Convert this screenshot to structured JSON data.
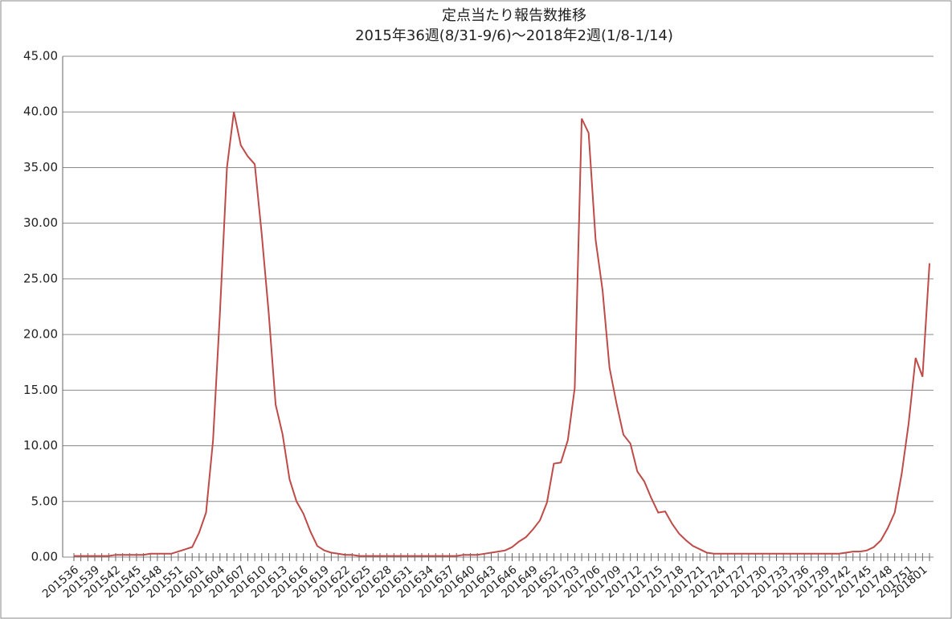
{
  "chart_data": {
    "type": "line",
    "title": "定点当たり報告数推移",
    "subtitle": "2015年36週(8/31-9/6)～2018年2週(1/8-1/14)",
    "categories": [
      "201536",
      null,
      null,
      "201539",
      null,
      null,
      "201542",
      null,
      null,
      "201545",
      null,
      null,
      "201548",
      null,
      null,
      "201551",
      null,
      null,
      "201601",
      null,
      null,
      "201604",
      null,
      null,
      "201607",
      null,
      null,
      "201610",
      null,
      null,
      "201613",
      null,
      null,
      "201616",
      null,
      null,
      "201619",
      null,
      null,
      "201622",
      null,
      null,
      "201625",
      null,
      null,
      "201628",
      null,
      null,
      "201631",
      null,
      null,
      "201634",
      null,
      null,
      "201637",
      null,
      null,
      "201640",
      null,
      null,
      "201643",
      null,
      null,
      "201646",
      null,
      null,
      "201649",
      null,
      null,
      "201652",
      null,
      null,
      "201703",
      null,
      null,
      "201706",
      null,
      null,
      "201709",
      null,
      null,
      "201712",
      null,
      null,
      "201715",
      null,
      null,
      "201718",
      null,
      null,
      "201721",
      null,
      null,
      "201724",
      null,
      null,
      "201727",
      null,
      null,
      "201730",
      null,
      null,
      "201733",
      null,
      null,
      "201736",
      null,
      null,
      "201739",
      null,
      null,
      "201742",
      null,
      null,
      "201745",
      null,
      null,
      "201748",
      null,
      null,
      "201751",
      null,
      "201801",
      null
    ],
    "series": [
      {
        "name": "定点当たり報告数",
        "color": "#be4b48",
        "values": [
          0.1,
          0.1,
          0.1,
          0.1,
          0.1,
          0.1,
          0.2,
          0.2,
          0.2,
          0.2,
          0.2,
          0.3,
          0.3,
          0.3,
          0.3,
          0.5,
          0.7,
          0.9,
          2.2,
          4.0,
          10.5,
          22,
          35,
          40,
          37,
          36,
          35.3,
          29,
          22,
          13.7,
          11,
          7,
          5,
          3.9,
          2.3,
          1.0,
          0.6,
          0.4,
          0.3,
          0.2,
          0.2,
          0.1,
          0.1,
          0.1,
          0.1,
          0.1,
          0.1,
          0.1,
          0.1,
          0.1,
          0.1,
          0.1,
          0.1,
          0.1,
          0.1,
          0.1,
          0.2,
          0.2,
          0.2,
          0.3,
          0.4,
          0.5,
          0.6,
          0.9,
          1.4,
          1.8,
          2.5,
          3.3,
          4.9,
          8.4,
          8.5,
          10.5,
          15.2,
          39.4,
          38.1,
          28.5,
          24,
          17,
          13.8,
          11,
          10.2,
          7.7,
          6.8,
          5.3,
          4.0,
          4.1,
          3.0,
          2.1,
          1.5,
          1.0,
          0.7,
          0.4,
          0.3,
          0.3,
          0.3,
          0.3,
          0.3,
          0.3,
          0.3,
          0.3,
          0.3,
          0.3,
          0.3,
          0.3,
          0.3,
          0.3,
          0.3,
          0.3,
          0.3,
          0.3,
          0.3,
          0.4,
          0.5,
          0.5,
          0.6,
          0.9,
          1.5,
          2.6,
          4.0,
          7.5,
          12,
          17.9,
          16.2,
          26.4
        ]
      }
    ],
    "ylim": [
      0,
      45
    ],
    "yticks": [
      {
        "value": 0,
        "label": "0.00"
      },
      {
        "value": 5,
        "label": "5.00"
      },
      {
        "value": 10,
        "label": "10.00"
      },
      {
        "value": 15,
        "label": "15.00"
      },
      {
        "value": 20,
        "label": "20.00"
      },
      {
        "value": 25,
        "label": "25.00"
      },
      {
        "value": 30,
        "label": "30.00"
      },
      {
        "value": 35,
        "label": "35.00"
      },
      {
        "value": 40,
        "label": "40.00"
      },
      {
        "value": 45,
        "label": "45.00"
      }
    ],
    "grid": true
  }
}
